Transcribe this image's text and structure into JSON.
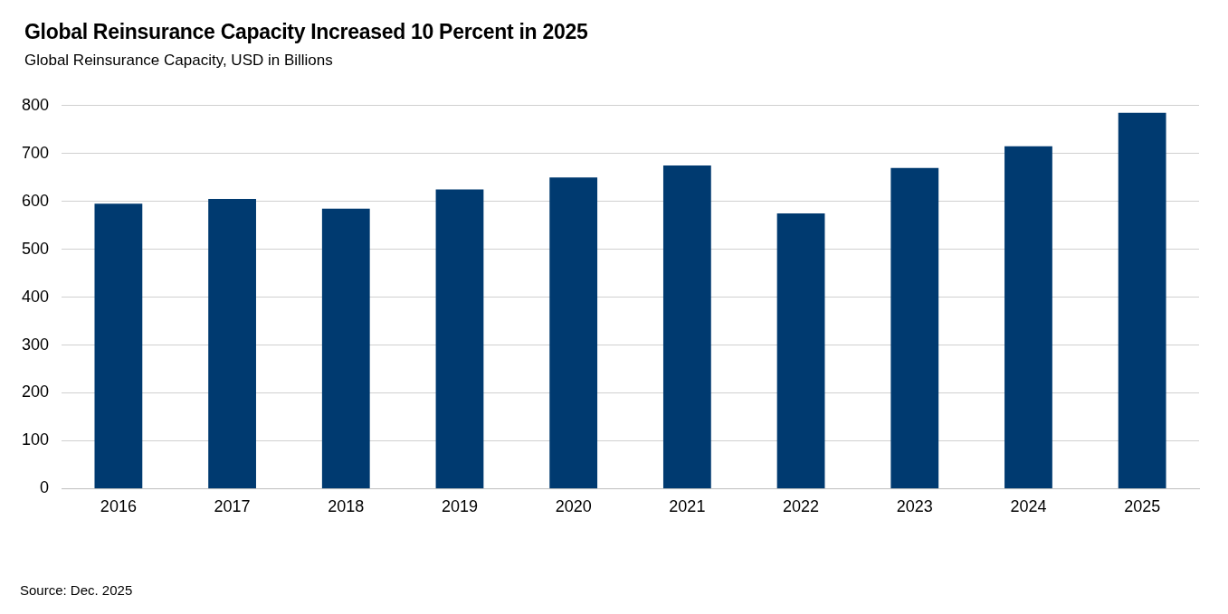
{
  "chart_data": {
    "type": "bar",
    "title": "Global Reinsurance Capacity Increased 10 Percent in 2025",
    "subtitle": "Global Reinsurance Capacity, USD in Billions",
    "categories": [
      "2016",
      "2017",
      "2018",
      "2019",
      "2020",
      "2021",
      "2022",
      "2023",
      "2024",
      "2025"
    ],
    "values": [
      595,
      605,
      585,
      625,
      650,
      675,
      575,
      670,
      715,
      785
    ],
    "color": "#003a70",
    "ylim": [
      0,
      800
    ],
    "yticks": [
      0,
      100,
      200,
      300,
      400,
      500,
      600,
      700,
      800
    ],
    "grid": "y",
    "legend": false,
    "annotations": [
      "Source: Dec. 2025"
    ]
  }
}
